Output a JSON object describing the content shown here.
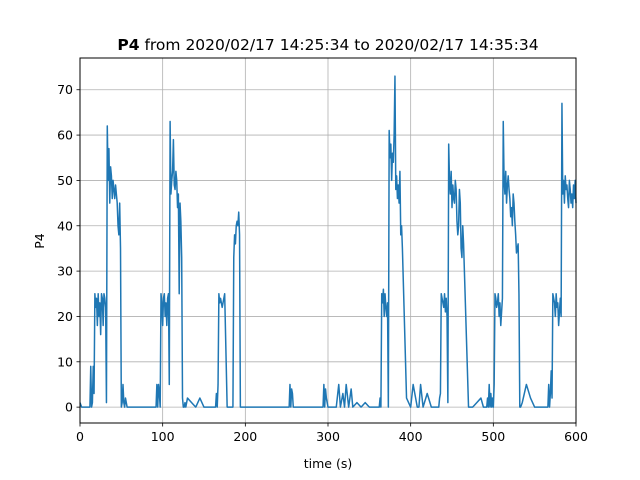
{
  "chart_data": {
    "type": "line",
    "title_bold": "P4",
    "title_rest": " from 2020/02/17 14:25:34 to 2020/02/17 14:35:34",
    "xlabel": "time (s)",
    "ylabel": "P4",
    "xlim": [
      0,
      600
    ],
    "ylim": [
      -3.5,
      77
    ],
    "xticks": [
      0,
      100,
      200,
      300,
      400,
      500,
      600
    ],
    "yticks": [
      0,
      10,
      20,
      30,
      40,
      50,
      60,
      70
    ],
    "grid": true,
    "line_color": "#1f77b4",
    "series": [
      {
        "x": [
          0,
          2,
          5,
          8,
          10,
          12,
          13,
          14,
          15,
          16,
          17,
          18,
          19,
          20,
          21,
          22,
          23,
          24,
          25,
          26,
          27,
          28,
          29,
          30,
          31,
          32,
          33,
          34,
          35,
          36,
          37,
          38,
          39,
          40,
          41,
          42,
          43,
          44,
          45,
          46,
          47,
          48,
          49,
          50,
          51,
          52,
          53,
          54,
          55,
          56,
          57,
          58,
          60,
          62,
          65,
          70,
          75,
          78,
          80,
          82,
          85,
          88,
          90,
          92,
          93,
          94,
          95,
          96,
          97,
          98,
          99,
          100,
          101,
          102,
          103,
          104,
          105,
          106,
          107,
          108,
          109,
          110,
          111,
          112,
          113,
          114,
          115,
          116,
          117,
          118,
          119,
          120,
          121,
          122,
          123,
          124,
          125,
          126,
          127,
          128,
          130,
          135,
          140,
          145,
          150,
          155,
          160,
          162,
          163,
          164,
          165,
          166,
          167,
          168,
          169,
          170,
          172,
          175,
          178,
          180,
          181,
          182,
          183,
          184,
          185,
          186,
          187,
          188,
          189,
          190,
          191,
          192,
          193,
          194,
          195,
          200,
          205,
          210,
          215,
          220,
          230,
          240,
          250,
          253,
          254,
          255,
          256,
          257,
          258,
          260,
          270,
          280,
          290,
          293,
          294,
          295,
          296,
          297,
          298,
          300,
          305,
          310,
          313,
          315,
          318,
          320,
          322,
          325,
          328,
          330,
          335,
          340,
          345,
          350,
          355,
          360,
          362,
          363,
          364,
          365,
          366,
          367,
          368,
          369,
          370,
          371,
          372,
          373,
          374,
          375,
          376,
          377,
          378,
          379,
          380,
          381,
          382,
          383,
          384,
          385,
          386,
          387,
          388,
          389,
          390,
          395,
          400,
          403,
          405,
          408,
          410,
          412,
          415,
          420,
          425,
          428,
          430,
          431,
          432,
          433,
          434,
          435,
          436,
          437,
          438,
          439,
          440,
          441,
          442,
          443,
          444,
          445,
          446,
          447,
          448,
          449,
          450,
          451,
          452,
          453,
          454,
          455,
          456,
          457,
          458,
          459,
          460,
          461,
          462,
          463,
          464,
          465,
          470,
          475,
          480,
          485,
          488,
          490,
          492,
          493,
          494,
          495,
          496,
          497,
          498,
          499,
          500,
          501,
          502,
          503,
          504,
          505,
          506,
          507,
          508,
          509,
          510,
          511,
          512,
          513,
          514,
          515,
          516,
          517,
          518,
          519,
          520,
          521,
          522,
          523,
          524,
          525,
          526,
          527,
          528,
          529,
          530,
          531,
          532,
          533,
          535,
          540,
          545,
          550,
          555,
          560,
          562,
          563,
          564,
          565,
          566,
          567,
          568,
          569,
          570,
          571,
          572,
          573,
          574,
          575,
          576,
          577,
          578,
          579,
          580,
          581,
          582,
          583,
          584,
          585,
          586,
          587,
          588,
          589,
          590,
          591,
          592,
          593,
          594,
          595,
          596,
          597,
          598,
          599,
          600
        ],
        "y": [
          1,
          0,
          0,
          0,
          0,
          0,
          9,
          0,
          1,
          9,
          3,
          25,
          22,
          24,
          18,
          25,
          20,
          23,
          16,
          25,
          24,
          18,
          25,
          24,
          22,
          1,
          62,
          50,
          57,
          45,
          53,
          51,
          46,
          50,
          48,
          46,
          49,
          47,
          45,
          40,
          38,
          45,
          35,
          0,
          1,
          5,
          1,
          0,
          2,
          1,
          0,
          0,
          0,
          0,
          0,
          0,
          0,
          0,
          0,
          0,
          0,
          0,
          0,
          0,
          5,
          0,
          5,
          3,
          0,
          25,
          23,
          18,
          24,
          25,
          20,
          23,
          18,
          24,
          25,
          5,
          63,
          47,
          50,
          52,
          59,
          49,
          48,
          52,
          50,
          44,
          47,
          25,
          45,
          41,
          33,
          2,
          0,
          0,
          1,
          0,
          2,
          1,
          0,
          2,
          0,
          0,
          0,
          0,
          0,
          0,
          3,
          0,
          5,
          25,
          23,
          24,
          22,
          25,
          0,
          0,
          0,
          0,
          0,
          0,
          0,
          33,
          38,
          36,
          40,
          41,
          40,
          43,
          38,
          0,
          0,
          0,
          0,
          0,
          0,
          0,
          0,
          0,
          0,
          0,
          5,
          0,
          4,
          3,
          0,
          0,
          0,
          0,
          0,
          0,
          0,
          5,
          0,
          4,
          2,
          0,
          0,
          0,
          5,
          0,
          3,
          0,
          5,
          0,
          4,
          0,
          1,
          0,
          1,
          0,
          0,
          0,
          0,
          2,
          0,
          25,
          23,
          26,
          20,
          25,
          22,
          20,
          23,
          0,
          61,
          55,
          58,
          50,
          56,
          54,
          60,
          73,
          48,
          51,
          46,
          49,
          45,
          52,
          38,
          40,
          35,
          2,
          0,
          5,
          3,
          0,
          0,
          5,
          0,
          3,
          0,
          0,
          0,
          0,
          0,
          0,
          0,
          2,
          3,
          25,
          24,
          23,
          22,
          25,
          21,
          24,
          20,
          1,
          58,
          50,
          47,
          52,
          44,
          49,
          46,
          45,
          50,
          48,
          41,
          38,
          40,
          48,
          45,
          35,
          33,
          40,
          36,
          30,
          0,
          0,
          1,
          2,
          0,
          0,
          0,
          2,
          0,
          5,
          0,
          3,
          0,
          2,
          0,
          5,
          25,
          24,
          22,
          23,
          25,
          20,
          23,
          18,
          21,
          24,
          63,
          50,
          47,
          52,
          45,
          49,
          51,
          48,
          46,
          42,
          44,
          40,
          47,
          45,
          41,
          38,
          34,
          35,
          36,
          25,
          0,
          0,
          1,
          5,
          2,
          0,
          0,
          0,
          0,
          0,
          0,
          0,
          0,
          5,
          0,
          3,
          8,
          2,
          25,
          24,
          23,
          20,
          25,
          22,
          23,
          18,
          21,
          24,
          20,
          67,
          47,
          50,
          45,
          51,
          48,
          49,
          46,
          44,
          50,
          48,
          45,
          47,
          44,
          49,
          46,
          50,
          45
        ]
      }
    ]
  }
}
